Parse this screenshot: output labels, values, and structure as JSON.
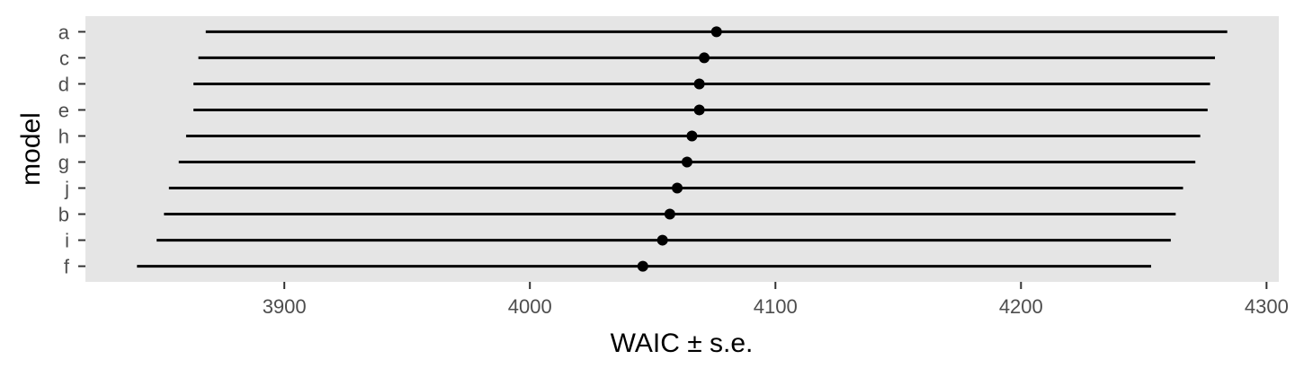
{
  "chart_data": {
    "type": "scatter",
    "subtype": "point-range",
    "xlabel": "WAIC ± s.e.",
    "ylabel": "model",
    "xlim": [
      3819,
      4305
    ],
    "x_ticks": [
      3900,
      4000,
      4100,
      4200,
      4300
    ],
    "categories": [
      "a",
      "c",
      "d",
      "e",
      "h",
      "g",
      "j",
      "b",
      "i",
      "f"
    ],
    "points": [
      {
        "model": "a",
        "waic": 4076,
        "lower": 3868,
        "upper": 4284
      },
      {
        "model": "c",
        "waic": 4071,
        "lower": 3865,
        "upper": 4279
      },
      {
        "model": "d",
        "waic": 4069,
        "lower": 3863,
        "upper": 4277
      },
      {
        "model": "e",
        "waic": 4069,
        "lower": 3863,
        "upper": 4276
      },
      {
        "model": "h",
        "waic": 4066,
        "lower": 3860,
        "upper": 4273
      },
      {
        "model": "g",
        "waic": 4064,
        "lower": 3857,
        "upper": 4271
      },
      {
        "model": "j",
        "waic": 4060,
        "lower": 3853,
        "upper": 4266
      },
      {
        "model": "b",
        "waic": 4057,
        "lower": 3851,
        "upper": 4263
      },
      {
        "model": "i",
        "waic": 4054,
        "lower": 3848,
        "upper": 4261
      },
      {
        "model": "f",
        "waic": 4046,
        "lower": 3840,
        "upper": 4253
      }
    ],
    "grid": false,
    "panel_background": "#e5e5e5",
    "point_color": "#000000"
  }
}
